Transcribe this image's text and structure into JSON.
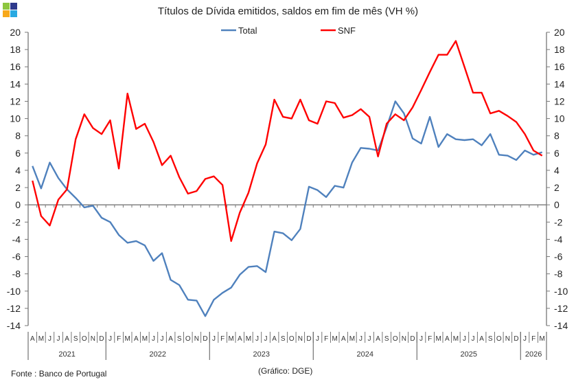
{
  "chart_data": {
    "type": "line",
    "title": "Títulos de Dívida emitidos, saldos em fim de mês  (VH %)",
    "xlabel": "",
    "ylabel": "",
    "ylim": [
      -14,
      20
    ],
    "yticks": [
      -14,
      -12,
      -10,
      -8,
      -6,
      -4,
      -2,
      0,
      2,
      4,
      6,
      8,
      10,
      12,
      14,
      16,
      18,
      20
    ],
    "legend_position": "top-center",
    "grid": false,
    "months": [
      "A",
      "M",
      "J",
      "J",
      "A",
      "S",
      "O",
      "N",
      "D",
      "J",
      "F",
      "M",
      "A",
      "M",
      "J",
      "J",
      "A",
      "S",
      "O",
      "N",
      "D",
      "J",
      "F",
      "M",
      "A",
      "M",
      "J",
      "J",
      "A",
      "S",
      "O",
      "N",
      "D",
      "J",
      "F",
      "M",
      "A",
      "M",
      "J",
      "J",
      "A",
      "S",
      "O",
      "N",
      "D",
      "J",
      "F",
      "M",
      "A",
      "M",
      "J",
      "J",
      "A",
      "S",
      "O",
      "N",
      "D",
      "J",
      "F",
      "M"
    ],
    "years": [
      {
        "label": "2021",
        "count": 9
      },
      {
        "label": "2022",
        "count": 12
      },
      {
        "label": "2023",
        "count": 12
      },
      {
        "label": "2024",
        "count": 12
      },
      {
        "label": "2025",
        "count": 12
      },
      {
        "label": "2026",
        "count": 3
      }
    ],
    "series": [
      {
        "name": "Total",
        "color": "#4f81bd",
        "values": [
          4.5,
          1.9,
          4.9,
          3.1,
          1.8,
          0.8,
          -0.3,
          -0.1,
          -1.5,
          -2.0,
          -3.5,
          -4.4,
          -4.2,
          -4.7,
          -6.5,
          -5.6,
          -8.7,
          -9.3,
          -11.0,
          -11.1,
          -12.9,
          -11.0,
          -10.2,
          -9.6,
          -8.1,
          -7.2,
          -7.1,
          -7.8,
          -3.1,
          -3.3,
          -4.1,
          -2.8,
          2.1,
          1.7,
          0.9,
          2.2,
          2.0,
          4.9,
          6.6,
          6.5,
          6.3,
          9.0,
          12.0,
          10.6,
          7.7,
          7.1,
          10.2,
          6.7,
          8.2,
          7.6,
          7.5,
          7.6,
          6.9,
          8.2,
          5.8,
          5.7,
          5.2,
          6.3,
          5.8,
          6.1
        ]
      },
      {
        "name": "SNF",
        "color": "#ff0000",
        "values": [
          2.8,
          -1.3,
          -2.4,
          0.6,
          1.8,
          7.6,
          10.5,
          8.9,
          8.2,
          9.8,
          4.2,
          12.9,
          8.8,
          9.4,
          7.3,
          4.6,
          5.7,
          3.2,
          1.3,
          1.6,
          3.0,
          3.3,
          2.3,
          -4.2,
          -0.9,
          1.4,
          4.8,
          7.0,
          12.2,
          10.2,
          10.0,
          12.2,
          9.8,
          9.4,
          12.0,
          11.8,
          10.1,
          10.4,
          11.1,
          10.2,
          5.6,
          9.4,
          10.5,
          9.8,
          11.3,
          13.3,
          15.4,
          17.4,
          17.4,
          19.0,
          16.0,
          13.0,
          13.0,
          10.6,
          10.9,
          10.3,
          9.6,
          8.2,
          6.3,
          5.7
        ]
      }
    ]
  },
  "footer": {
    "source": "Fonte : Banco de Portugal",
    "credit": "(Gráfico: DGE)"
  },
  "logo": {
    "colors": [
      "#8dc63f",
      "#2e3a8c",
      "#f7a81b",
      "#29a9e1"
    ]
  }
}
